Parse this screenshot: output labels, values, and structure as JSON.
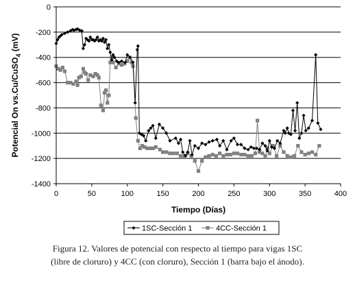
{
  "chart_data": {
    "type": "line",
    "xlabel": "Tiempo (Días)",
    "ylabel_parts": [
      "Potencial On vs.Cu/CuSO",
      "4",
      " (mV)"
    ],
    "xlim": [
      0,
      400
    ],
    "ylim": [
      -1400,
      0
    ],
    "xticks": [
      0,
      50,
      100,
      150,
      200,
      250,
      300,
      350,
      400
    ],
    "yticks": [
      0,
      -200,
      -400,
      -600,
      -800,
      -1000,
      -1200,
      -1400
    ],
    "grid": "horizontal",
    "legend_position": "bottom",
    "series": [
      {
        "name": "1SC-Sección 1",
        "color": "#000000",
        "marker": "diamond",
        "x": [
          0,
          2,
          4,
          6,
          8,
          12,
          16,
          20,
          23,
          25,
          28,
          30,
          33,
          36,
          38,
          40,
          42,
          44,
          46,
          48,
          50,
          52,
          54,
          56,
          58,
          60,
          62,
          64,
          66,
          68,
          70,
          72,
          74,
          76,
          78,
          80,
          82,
          85,
          88,
          92,
          97,
          100,
          104,
          108,
          111,
          114,
          115,
          117,
          120,
          123,
          126,
          130,
          133,
          136,
          140,
          145,
          150,
          155,
          160,
          168,
          172,
          175,
          178,
          182,
          185,
          188,
          191,
          195,
          200,
          205,
          210,
          215,
          220,
          226,
          230,
          235,
          240,
          246,
          250,
          255,
          260,
          265,
          270,
          274,
          278,
          282,
          286,
          290,
          294,
          297,
          300,
          303,
          307,
          311,
          315,
          320,
          322,
          325,
          327,
          330,
          333,
          336,
          339,
          342,
          345,
          348,
          351,
          355,
          360,
          365,
          368,
          372
        ],
        "y": [
          -290,
          -260,
          -240,
          -230,
          -220,
          -210,
          -200,
          -190,
          -180,
          -185,
          -180,
          -175,
          -185,
          -190,
          -330,
          -300,
          -250,
          -260,
          -270,
          -240,
          -260,
          -260,
          -270,
          -260,
          -240,
          -270,
          -260,
          -270,
          -250,
          -280,
          -260,
          -330,
          -300,
          -360,
          -420,
          -380,
          -400,
          -430,
          -440,
          -430,
          -440,
          -380,
          -400,
          -440,
          -760,
          -340,
          -310,
          -1000,
          -1010,
          -1020,
          -1060,
          -980,
          -960,
          -940,
          -1040,
          -930,
          -960,
          -1000,
          -1060,
          -1040,
          -1080,
          -1050,
          -1150,
          -1180,
          -1150,
          -1060,
          -1170,
          -1100,
          -1120,
          -1080,
          -1090,
          -1070,
          -1060,
          -1050,
          -1100,
          -1060,
          -1130,
          -1060,
          -1040,
          -1090,
          -1090,
          -1120,
          -1130,
          -1110,
          -1120,
          -1120,
          -1130,
          -1080,
          -1100,
          -1140,
          -1060,
          -1110,
          -1120,
          -1060,
          -1080,
          -980,
          -1000,
          -960,
          -1000,
          -1010,
          -820,
          -980,
          -760,
          -1040,
          -1000,
          -860,
          -980,
          -960,
          -900,
          -380,
          -920,
          -970
        ]
      },
      {
        "name": "4CC-Sección 1",
        "color": "#808080",
        "marker": "square",
        "x": [
          0,
          3,
          6,
          9,
          12,
          16,
          20,
          24,
          28,
          30,
          32,
          35,
          38,
          40,
          42,
          45,
          48,
          52,
          55,
          58,
          60,
          63,
          66,
          68,
          70,
          72,
          74,
          76,
          78,
          80,
          84,
          88,
          92,
          96,
          100,
          103,
          106,
          108,
          112,
          115,
          118,
          121,
          124,
          128,
          132,
          136,
          140,
          146,
          150,
          155,
          160,
          165,
          170,
          175,
          180,
          185,
          190,
          195,
          200,
          205,
          210,
          215,
          220,
          225,
          230,
          235,
          240,
          245,
          250,
          255,
          260,
          265,
          270,
          275,
          280,
          283,
          286,
          290,
          294,
          297,
          300,
          305,
          310,
          315,
          320,
          325,
          330,
          335,
          340,
          345,
          350,
          355,
          360,
          365,
          370
        ],
        "y": [
          -470,
          -490,
          -500,
          -480,
          -510,
          -600,
          -600,
          -610,
          -590,
          -620,
          -560,
          -550,
          -490,
          -520,
          -530,
          -580,
          -540,
          -550,
          -530,
          -540,
          -560,
          -780,
          -820,
          -680,
          -660,
          -760,
          -700,
          -440,
          -400,
          -440,
          -480,
          -450,
          -460,
          -450,
          -430,
          -400,
          -440,
          -470,
          -880,
          -1060,
          -1120,
          -1100,
          -1110,
          -1120,
          -1120,
          -1120,
          -1110,
          -1130,
          -1150,
          -1150,
          -1160,
          -1160,
          -1160,
          -1180,
          -1180,
          -1160,
          -1180,
          -1220,
          -1300,
          -1220,
          -1190,
          -1180,
          -1170,
          -1180,
          -1160,
          -1180,
          -1170,
          -1170,
          -1160,
          -1160,
          -1170,
          -1170,
          -1180,
          -1180,
          -1160,
          -900,
          -1150,
          -1160,
          -1180,
          -1120,
          -1160,
          -1100,
          -1180,
          -1100,
          -1150,
          -1180,
          -1190,
          -1180,
          -1100,
          -1150,
          -1170,
          -1160,
          -1150,
          -1170,
          -1100
        ]
      }
    ]
  },
  "caption": {
    "line1": "Figura 12. Valores de potencial con respecto al tiempo para vigas 1SC",
    "line2": "(libre de cloruro) y 4CC  (con cloruro), Sección 1 (barra bajo el ánodo)."
  }
}
